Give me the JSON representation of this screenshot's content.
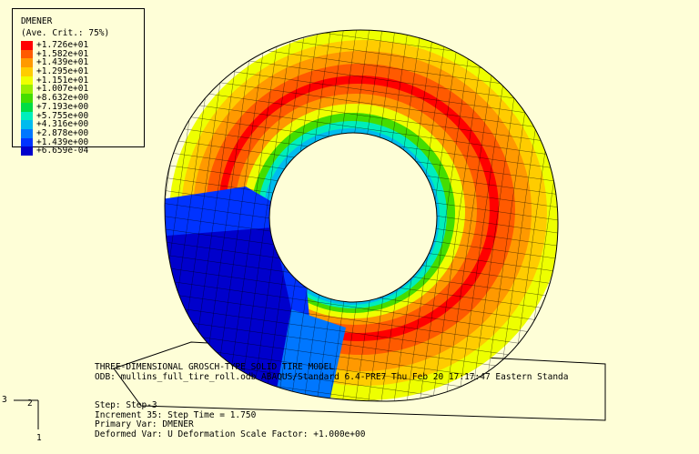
{
  "legend": {
    "title": "DMENER",
    "subtitle": "(Ave. Crit.: 75%)",
    "entries": [
      {
        "label": "+1.726e+01",
        "color": "#ff0000"
      },
      {
        "label": "+1.582e+01",
        "color": "#ff5a00"
      },
      {
        "label": "+1.439e+01",
        "color": "#ff9900"
      },
      {
        "label": "+1.295e+01",
        "color": "#ffcc00"
      },
      {
        "label": "+1.151e+01",
        "color": "#eeff00"
      },
      {
        "label": "+1.007e+01",
        "color": "#99ee00"
      },
      {
        "label": "+8.632e+00",
        "color": "#44dd00"
      },
      {
        "label": "+7.193e+00",
        "color": "#00dd44"
      },
      {
        "label": "+5.755e+00",
        "color": "#00eebb"
      },
      {
        "label": "+4.316e+00",
        "color": "#00bbee"
      },
      {
        "label": "+2.878e+00",
        "color": "#0077ff"
      },
      {
        "label": "+1.439e+00",
        "color": "#0033ff"
      },
      {
        "label": "+6.659e-04",
        "color": "#0000cc"
      }
    ]
  },
  "info": {
    "model_line": "THREE-DIMENSIONAL GROSCH-TYPE SOLID TIRE MODEL",
    "odb_line": "ODB: mullins_full_tire_roll.odb    ABAQUS/Standard 6.4-PRE7    Thu Feb 20 17:17:47 Eastern Standa",
    "step_line": "Step: Step-3",
    "increment_line": "Increment    35: Step Time =     1.750",
    "primary_var_line": "Primary Var: DMENER",
    "deformed_var_line": "Deformed Var: U   Deformation Scale Factor: +1.000e+00"
  },
  "triad": {
    "axis_a": "3",
    "axis_b": "2",
    "axis_c": "1"
  },
  "colors": {
    "background": "#fefed7",
    "mesh": "#000000"
  }
}
